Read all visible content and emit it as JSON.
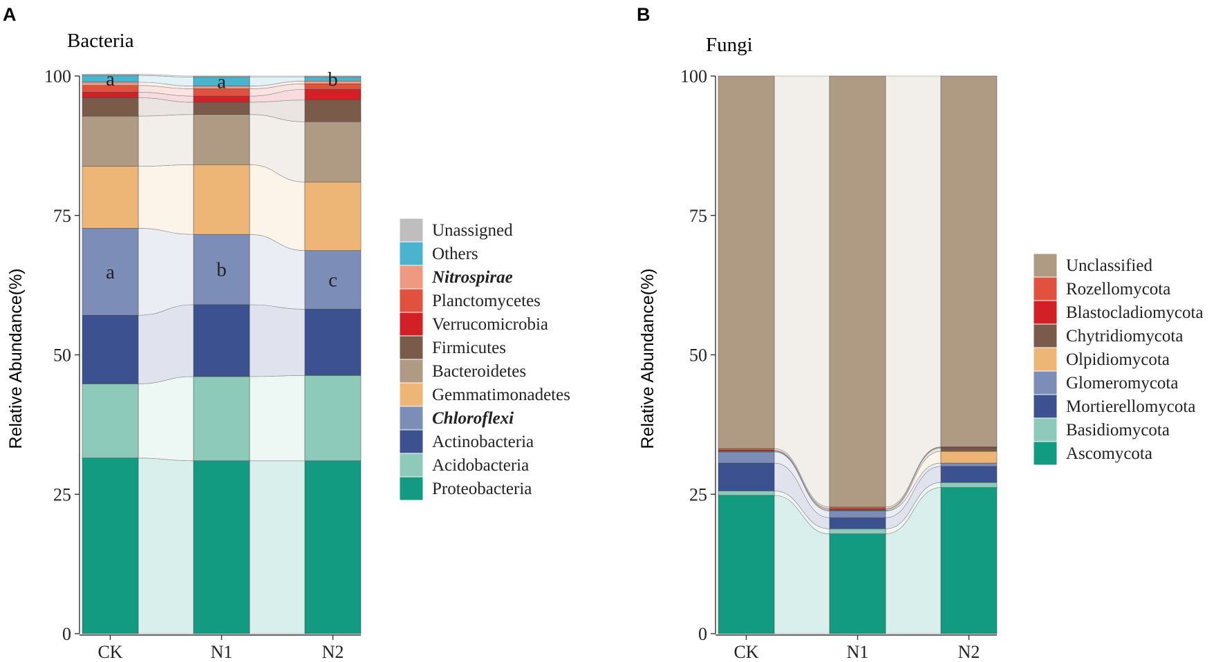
{
  "panels": [
    {
      "label": "A",
      "title": "Bacteria",
      "ylabel": "Relative Abundance(%)",
      "yticks": [
        "0",
        "25",
        "50",
        "75",
        "100"
      ],
      "ylim": [
        0,
        100
      ],
      "categories": [
        "CK",
        "N1",
        "N2"
      ],
      "sig_letters": [
        {
          "series": "Chloroflexi",
          "letters": [
            "a",
            "b",
            "c"
          ]
        },
        {
          "series": "Others",
          "letters": [
            "a",
            "a",
            "b"
          ]
        }
      ],
      "series": [
        {
          "name": "Proteobacteria",
          "italic": false,
          "color": "#129b80",
          "values": [
            31.5,
            31.0,
            31.0
          ]
        },
        {
          "name": "Acidobacteria",
          "italic": false,
          "color": "#8dcab9",
          "values": [
            13.3,
            15.1,
            15.3
          ]
        },
        {
          "name": "Actinobacteria",
          "italic": false,
          "color": "#3b5190",
          "values": [
            12.3,
            12.9,
            11.9
          ]
        },
        {
          "name": "Chloroflexi",
          "italic": true,
          "color": "#7c8db7",
          "values": [
            15.6,
            12.6,
            10.5
          ]
        },
        {
          "name": "Gemmatimonadetes",
          "italic": false,
          "color": "#eeb676",
          "values": [
            11.1,
            12.5,
            12.3
          ]
        },
        {
          "name": "Bacteroidetes",
          "italic": false,
          "color": "#af9a84",
          "values": [
            9.0,
            9.0,
            10.8
          ]
        },
        {
          "name": "Firmicutes",
          "italic": false,
          "color": "#7a5b4a",
          "values": [
            3.3,
            2.2,
            3.9
          ]
        },
        {
          "name": "Verrucomicrobia",
          "italic": false,
          "color": "#d31f26",
          "values": [
            1.0,
            1.1,
            1.9
          ]
        },
        {
          "name": "Planctomycetes",
          "italic": false,
          "color": "#e0513e",
          "values": [
            1.2,
            1.3,
            1.0
          ]
        },
        {
          "name": "Nitrospirae",
          "italic": true,
          "color": "#ef9a80",
          "values": [
            0.6,
            0.5,
            0.5
          ]
        },
        {
          "name": "Others",
          "italic": false,
          "color": "#4ab4cf",
          "values": [
            1.2,
            1.6,
            0.7
          ]
        },
        {
          "name": "Unassigned",
          "italic": false,
          "color": "#bebebe",
          "values": [
            0.2,
            0.2,
            0.2
          ]
        }
      ]
    },
    {
      "label": "B",
      "title": "Fungi",
      "ylabel": "Relative Abundance(%)",
      "yticks": [
        "0",
        "25",
        "50",
        "75",
        "100"
      ],
      "ylim": [
        0,
        100
      ],
      "categories": [
        "CK",
        "N1",
        "N2"
      ],
      "sig_letters": [],
      "series": [
        {
          "name": "Ascomycota",
          "italic": false,
          "color": "#129b80",
          "values": [
            24.8,
            17.9,
            26.2
          ]
        },
        {
          "name": "Basidiomycota",
          "italic": false,
          "color": "#8dcab9",
          "values": [
            0.8,
            0.9,
            0.9
          ]
        },
        {
          "name": "Mortierellomycota",
          "italic": false,
          "color": "#3b5190",
          "values": [
            5.0,
            2.0,
            2.9
          ]
        },
        {
          "name": "Glomeromycota",
          "italic": false,
          "color": "#7c8db7",
          "values": [
            2.0,
            1.2,
            0.6
          ]
        },
        {
          "name": "Olpidiomycota",
          "italic": false,
          "color": "#eeb676",
          "values": [
            0.1,
            0.1,
            2.1
          ]
        },
        {
          "name": "Chytridiomycota",
          "italic": false,
          "color": "#7a5b4a",
          "values": [
            0.1,
            0.2,
            0.6
          ]
        },
        {
          "name": "Blastocladiomycota",
          "italic": false,
          "color": "#d31f26",
          "values": [
            0.1,
            0.1,
            0.1
          ]
        },
        {
          "name": "Rozellomycota",
          "italic": false,
          "color": "#e0513e",
          "values": [
            0.3,
            0.3,
            0.1
          ]
        },
        {
          "name": "Unclassified",
          "italic": false,
          "color": "#af9a84",
          "values": [
            66.8,
            77.3,
            66.5
          ]
        }
      ]
    }
  ],
  "chart_data": [
    {
      "type": "bar",
      "stacked": true,
      "title": "Bacteria",
      "xlabel": "",
      "ylabel": "Relative Abundance(%)",
      "ylim": [
        0,
        100
      ],
      "categories": [
        "CK",
        "N1",
        "N2"
      ],
      "series": [
        {
          "name": "Proteobacteria",
          "values": [
            31.5,
            31.0,
            31.0
          ]
        },
        {
          "name": "Acidobacteria",
          "values": [
            13.3,
            15.1,
            15.3
          ]
        },
        {
          "name": "Actinobacteria",
          "values": [
            12.3,
            12.9,
            11.9
          ]
        },
        {
          "name": "Chloroflexi",
          "values": [
            15.6,
            12.6,
            10.5
          ]
        },
        {
          "name": "Gemmatimonadetes",
          "values": [
            11.1,
            12.5,
            12.3
          ]
        },
        {
          "name": "Bacteroidetes",
          "values": [
            9.0,
            9.0,
            10.8
          ]
        },
        {
          "name": "Firmicutes",
          "values": [
            3.3,
            2.2,
            3.9
          ]
        },
        {
          "name": "Verrucomicrobia",
          "values": [
            1.0,
            1.1,
            1.9
          ]
        },
        {
          "name": "Planctomycetes",
          "values": [
            1.2,
            1.3,
            1.0
          ]
        },
        {
          "name": "Nitrospirae",
          "values": [
            0.6,
            0.5,
            0.5
          ]
        },
        {
          "name": "Others",
          "values": [
            1.2,
            1.6,
            0.7
          ]
        },
        {
          "name": "Unassigned",
          "values": [
            0.2,
            0.2,
            0.2
          ]
        }
      ],
      "legend": "right"
    },
    {
      "type": "bar",
      "stacked": true,
      "title": "Fungi",
      "xlabel": "",
      "ylabel": "Relative Abundance(%)",
      "ylim": [
        0,
        100
      ],
      "categories": [
        "CK",
        "N1",
        "N2"
      ],
      "series": [
        {
          "name": "Ascomycota",
          "values": [
            24.8,
            17.9,
            26.2
          ]
        },
        {
          "name": "Basidiomycota",
          "values": [
            0.8,
            0.9,
            0.9
          ]
        },
        {
          "name": "Mortierellomycota",
          "values": [
            5.0,
            2.0,
            2.9
          ]
        },
        {
          "name": "Glomeromycota",
          "values": [
            2.0,
            1.2,
            0.6
          ]
        },
        {
          "name": "Olpidiomycota",
          "values": [
            0.1,
            0.1,
            2.1
          ]
        },
        {
          "name": "Chytridiomycota",
          "values": [
            0.1,
            0.2,
            0.6
          ]
        },
        {
          "name": "Blastocladiomycota",
          "values": [
            0.1,
            0.1,
            0.1
          ]
        },
        {
          "name": "Rozellomycota",
          "values": [
            0.3,
            0.3,
            0.1
          ]
        },
        {
          "name": "Unclassified",
          "values": [
            66.8,
            77.3,
            66.5
          ]
        }
      ],
      "legend": "right"
    }
  ]
}
